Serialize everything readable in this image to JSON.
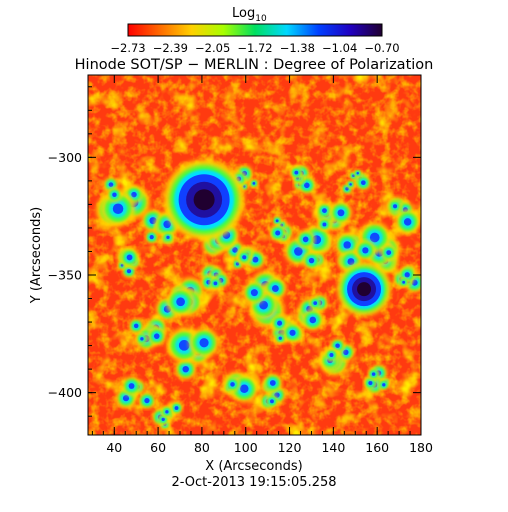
{
  "colorbar": {
    "label": "Log",
    "label_subscript": "10",
    "tick_labels": [
      "−2.73",
      "−2.39",
      "−2.05",
      "−1.72",
      "−1.38",
      "−1.04",
      "−0.70"
    ],
    "colors": [
      "#ff0000",
      "#ff6a00",
      "#ffd000",
      "#a8ff00",
      "#00e060",
      "#00d8ff",
      "#0040ff",
      "#2000c0",
      "#200030"
    ]
  },
  "title": "Hinode SOT/SP − MERLIN : Degree of Polarization",
  "x_axis": {
    "label": "X (Arcseconds)",
    "range": [
      28,
      180
    ],
    "ticks": [
      40,
      60,
      80,
      100,
      120,
      140,
      160,
      180
    ],
    "tick_labels": [
      "40",
      "60",
      "80",
      "100",
      "120",
      "140",
      "160",
      "180"
    ]
  },
  "y_axis": {
    "label": "Y (Arcseconds)",
    "range": [
      -418,
      -265
    ],
    "ticks": [
      -300,
      -350,
      -400
    ],
    "tick_labels": [
      "−300",
      "−350",
      "−400"
    ]
  },
  "timestamp": "2-Oct-2013 19:15:05.258",
  "map": {
    "colors": {
      "background": "#ff3a10",
      "red": "#ff0000",
      "orange": "#ff7000",
      "yellow": "#ffd800",
      "green": "#40ff40",
      "cyan": "#00e0ff",
      "blue": "#1040ff",
      "navy": "#2010a0",
      "dark": "#200030"
    },
    "sunspots": [
      {
        "x": 81,
        "y": -318,
        "size": "large"
      },
      {
        "x": 154,
        "y": -356,
        "size": "small"
      }
    ]
  }
}
